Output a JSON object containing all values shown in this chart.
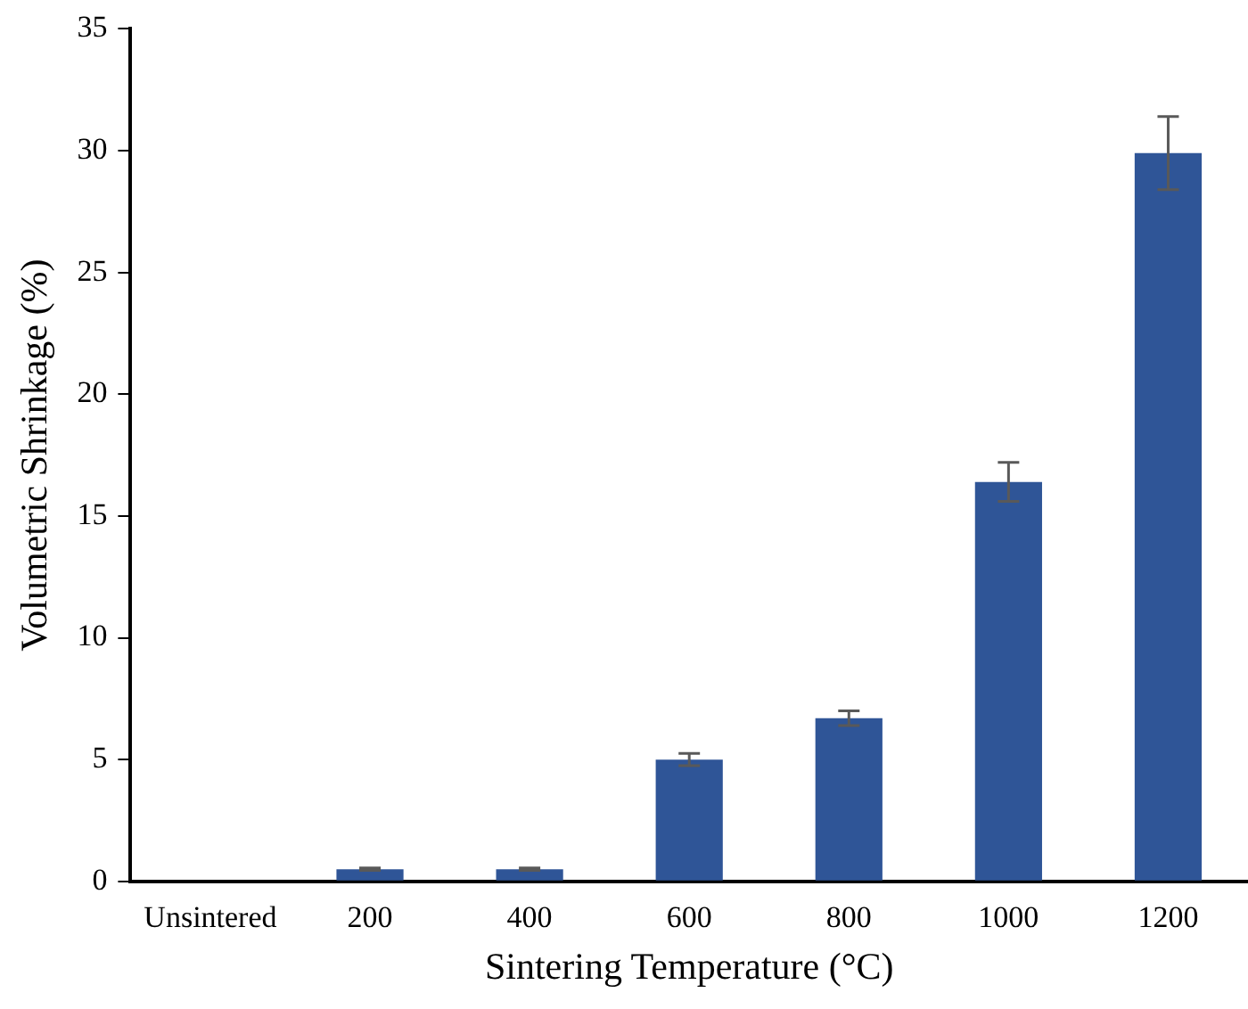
{
  "chart_data": {
    "type": "bar",
    "xlabel": "Sintering Temperature (°C)",
    "ylabel": "Volumetric Shrinkage (%)",
    "categories": [
      "Unsintered",
      "200",
      "400",
      "600",
      "800",
      "1000",
      "1200"
    ],
    "values": [
      0,
      0.5,
      0.5,
      5.0,
      6.7,
      16.4,
      29.9
    ],
    "errors": [
      null,
      0.05,
      0.05,
      0.25,
      0.3,
      0.8,
      1.5
    ],
    "color": "#2f5597",
    "ylim": [
      0,
      35
    ],
    "yticks": [
      0,
      5,
      10,
      15,
      20,
      25,
      30,
      35
    ],
    "grid": false,
    "legend": false
  }
}
